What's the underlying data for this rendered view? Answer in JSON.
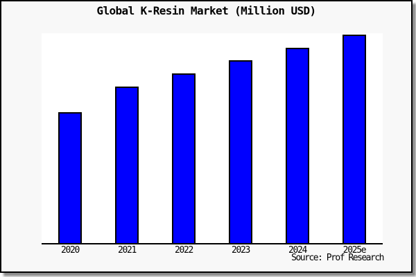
{
  "title": "Global K-Resin Market (Million USD)",
  "source_note": "Source: Prof Research",
  "frame": {
    "background": "#f8f8f8",
    "border_color": "#000000"
  },
  "chart_data": {
    "type": "bar",
    "title": "Global K-Resin Market (Million USD)",
    "categories": [
      "2020",
      "2021",
      "2022",
      "2023",
      "2024",
      "2025e"
    ],
    "values": [
      189,
      226,
      245,
      264,
      282,
      301
    ],
    "value_note": "no y-axis scale shown; values are relative bar heights read from pixels",
    "xlabel": "",
    "ylabel": "",
    "ylim": [
      0,
      303
    ],
    "grid": false,
    "legend": false,
    "bar_color": "#0000ff",
    "bar_border_color": "#000000",
    "plot_background": "#ffffff"
  }
}
